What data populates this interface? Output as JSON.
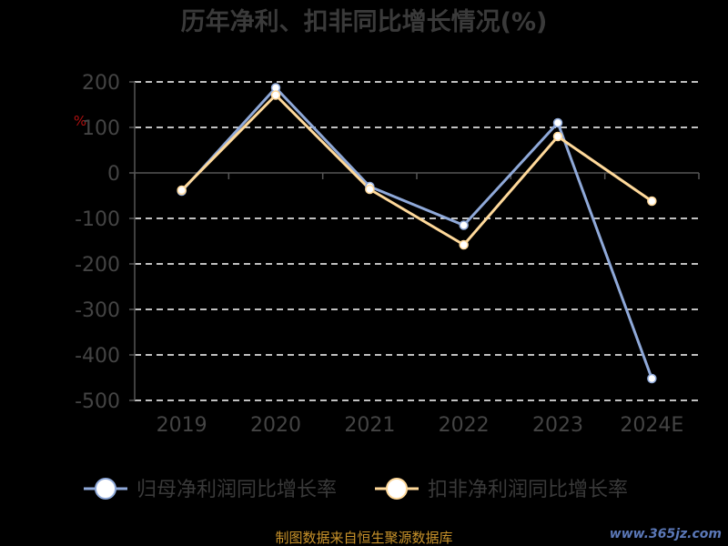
{
  "chart_data": {
    "type": "line",
    "title": "历年净利、扣非同比增长情况(%)",
    "ylabel": "%",
    "categories": [
      "2019",
      "2020",
      "2021",
      "2022",
      "2023",
      "2024E"
    ],
    "ylim": [
      -500,
      200
    ],
    "yticks": [
      200,
      100,
      0,
      -100,
      -200,
      -300,
      -400,
      -500
    ],
    "grid": true,
    "legend_position": "bottom",
    "series": [
      {
        "name": "归母净利润同比增长率",
        "color": "#8fa9d9",
        "values": [
          -40,
          187,
          -30,
          -115,
          110,
          -452
        ]
      },
      {
        "name": "扣非净利润同比增长率",
        "color": "#ffd99a",
        "values": [
          -38,
          171,
          -36,
          -158,
          80,
          -62
        ]
      }
    ]
  },
  "footer": {
    "source": "制图数据来自恒生聚源数据库",
    "watermark": "www.365jz.com"
  }
}
